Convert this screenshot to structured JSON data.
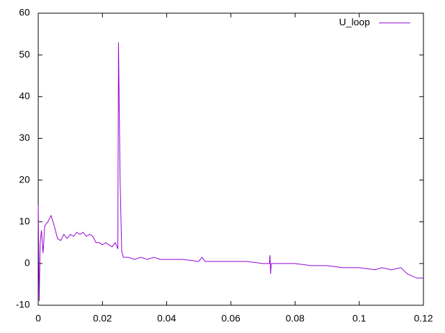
{
  "chart_data": {
    "type": "line",
    "x": [
      0,
      0.0003,
      0.0006,
      0.001,
      0.0015,
      0.002,
      0.003,
      0.004,
      0.005,
      0.006,
      0.007,
      0.008,
      0.009,
      0.01,
      0.011,
      0.012,
      0.013,
      0.014,
      0.015,
      0.016,
      0.017,
      0.018,
      0.019,
      0.02,
      0.021,
      0.022,
      0.023,
      0.024,
      0.0248,
      0.025,
      0.0255,
      0.026,
      0.0265,
      0.028,
      0.03,
      0.032,
      0.034,
      0.036,
      0.038,
      0.04,
      0.045,
      0.05,
      0.051,
      0.052,
      0.055,
      0.06,
      0.065,
      0.07,
      0.072,
      0.0722,
      0.0724,
      0.0726,
      0.075,
      0.08,
      0.085,
      0.09,
      0.095,
      0.1,
      0.105,
      0.107,
      0.11,
      0.113,
      0.115,
      0.118,
      0.12
    ],
    "series": [
      {
        "name": "U_loop",
        "color": "#9400d3",
        "values": [
          14,
          -9,
          5,
          8,
          2.5,
          9,
          10,
          11.5,
          9,
          6,
          5.5,
          7,
          6,
          7,
          6.5,
          7.5,
          7,
          7.5,
          6.5,
          7,
          6.5,
          5,
          5,
          4.5,
          5,
          4.5,
          4,
          5,
          3.5,
          53,
          20,
          3,
          1.5,
          1.5,
          1,
          1.5,
          1,
          1.5,
          1,
          1,
          1,
          0.5,
          1.5,
          0.5,
          0.5,
          0.5,
          0.5,
          0,
          0,
          2,
          -2.5,
          0,
          0,
          0,
          -0.5,
          -0.5,
          -1,
          -1,
          -1.5,
          -1,
          -1.5,
          -1,
          -2.5,
          -3.5,
          -3.5
        ]
      }
    ],
    "xlim": [
      0,
      0.12
    ],
    "xticks": [
      0,
      0.02,
      0.04,
      0.06,
      0.08,
      0.1,
      0.12
    ],
    "ylim": [
      -10,
      60
    ],
    "yticks": [
      -10,
      0,
      10,
      20,
      30,
      40,
      50,
      60
    ],
    "legend": "top-right"
  }
}
